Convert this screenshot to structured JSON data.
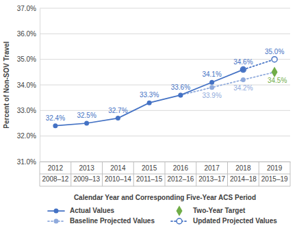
{
  "chart_data": {
    "type": "line",
    "x_label": "Calendar Year and Corresponding Five-Year ACS Period",
    "y_label": "Percent of Non-SOV Travel",
    "categories": [
      "2012\n2008–12",
      "2013\n2009–13",
      "2014\n2010–14",
      "2015\n2011–15",
      "2016\n2012–16",
      "2017\n2013–17",
      "2018\n2014–18",
      "2019\n2015–19"
    ],
    "ylim": [
      31,
      37
    ],
    "yticks": [
      {
        "value": 31,
        "label": "31.0%"
      },
      {
        "value": 32,
        "label": "32.0%"
      },
      {
        "value": 33,
        "label": "33.0%"
      },
      {
        "value": 34,
        "label": "34.0%"
      },
      {
        "value": 35,
        "label": "35.0%"
      },
      {
        "value": 36,
        "label": "36.0%"
      },
      {
        "value": 37,
        "label": "37.0%"
      }
    ],
    "grid": true,
    "legend": "bottom",
    "series": [
      {
        "name": "Actual Values",
        "type": "line",
        "color": "#4472c4",
        "marker": "circle",
        "line_style": "solid",
        "data_labels": true,
        "values": [
          32.4,
          32.5,
          32.7,
          33.3,
          33.6,
          34.1,
          34.6,
          null
        ],
        "value_labels": [
          "32.4%",
          "32.5%",
          "32.7%",
          "33.3%",
          "33.6%",
          "34.1%",
          "34.6%",
          null
        ]
      },
      {
        "name": "Baseline Projected Values",
        "type": "line",
        "color": "#8faadc",
        "marker": "circle",
        "line_style": "dotted",
        "data_labels": true,
        "values": [
          null,
          null,
          null,
          null,
          33.6,
          33.9,
          34.2,
          34.5
        ],
        "value_labels": [
          null,
          null,
          null,
          null,
          null,
          "33.9%",
          "34.2%",
          null
        ]
      },
      {
        "name": "Two-Year Target",
        "type": "scatter",
        "color": "#70ad47",
        "marker": "diamond",
        "data_labels": true,
        "values": [
          null,
          null,
          null,
          null,
          null,
          null,
          null,
          34.5
        ],
        "value_labels": [
          null,
          null,
          null,
          null,
          null,
          null,
          null,
          "34.5%"
        ]
      },
      {
        "name": "Updated Projected Values",
        "type": "line",
        "color": "#4472c4",
        "marker": "open-circle",
        "line_style": "dotted",
        "data_labels": true,
        "values": [
          null,
          null,
          null,
          null,
          null,
          null,
          34.6,
          35.0
        ],
        "value_labels": [
          null,
          null,
          null,
          null,
          null,
          null,
          null,
          "35.0%"
        ]
      }
    ]
  }
}
